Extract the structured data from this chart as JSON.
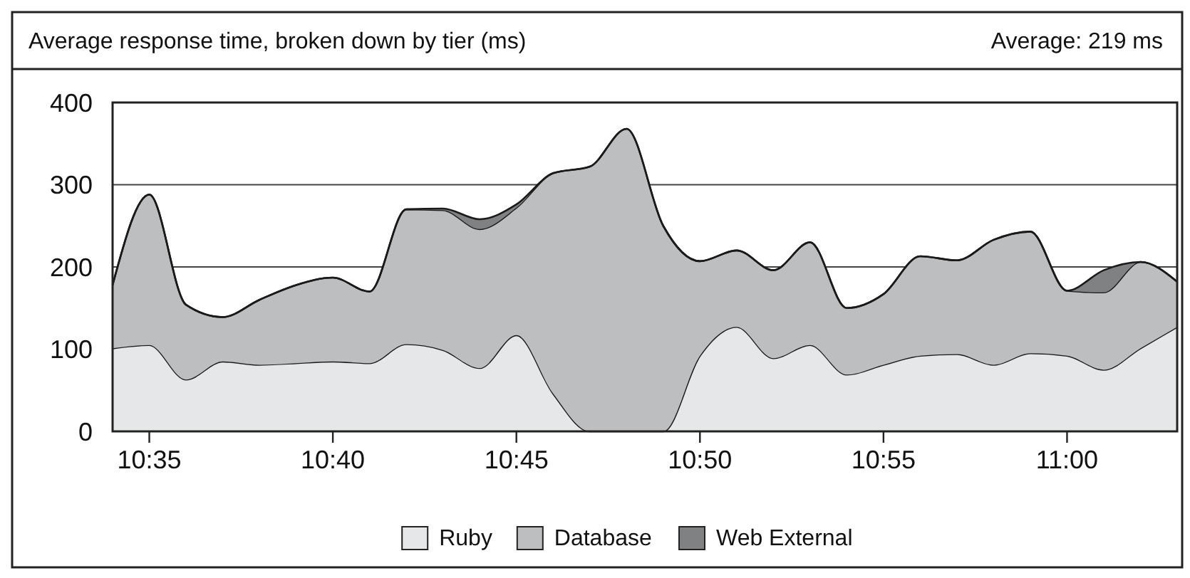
{
  "chart_data": {
    "type": "area",
    "stacked": true,
    "title": "Average response time, broken down by tier (ms)",
    "annotations": [
      "Average: 219 ms"
    ],
    "categories": [
      null,
      "10:35",
      null,
      null,
      null,
      null,
      "10:40",
      null,
      null,
      null,
      null,
      "10:45",
      null,
      null,
      null,
      null,
      "10:50",
      null,
      null,
      null,
      null,
      "10:55",
      null,
      null,
      null,
      null,
      "11:00",
      null,
      null,
      null
    ],
    "series": [
      {
        "name": "Ruby",
        "color": "#e6e7e8",
        "values": [
          101,
          105,
          63,
          85,
          81,
          83,
          85,
          83,
          106,
          99,
          77,
          117,
          46,
          0,
          0,
          0,
          92,
          127,
          89,
          105,
          69,
          81,
          92,
          94,
          81,
          95,
          92,
          75,
          101,
          127
        ]
      },
      {
        "name": "Database",
        "color": "#bdbec0",
        "values": [
          77,
          183,
          91,
          54,
          79,
          95,
          102,
          87,
          164,
          170,
          169,
          155,
          268,
          322,
          368,
          250,
          115,
          93,
          107,
          125,
          81,
          86,
          121,
          114,
          152,
          148,
          79,
          94,
          105,
          55
        ]
      },
      {
        "name": "Web External",
        "color": "#808183",
        "values": [
          0,
          0,
          0,
          0,
          0,
          0,
          0,
          0,
          0,
          2,
          12,
          4,
          0,
          0,
          0,
          0,
          0,
          0,
          0,
          0,
          0,
          0,
          0,
          0,
          0,
          0,
          0,
          27,
          0,
          0
        ]
      }
    ],
    "ylim": [
      0,
      400
    ],
    "yticks": [
      0,
      100,
      200,
      300,
      400
    ],
    "grid": "y",
    "legend": "bottom"
  }
}
